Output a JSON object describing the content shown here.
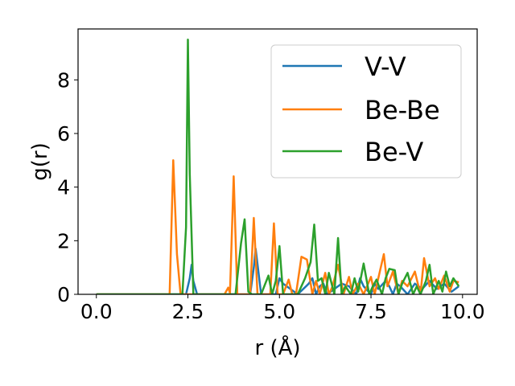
{
  "chart_data": {
    "type": "line",
    "title": "",
    "xlabel": "r (Å)",
    "ylabel": "g(r)",
    "xlim": [
      -0.5,
      10.4
    ],
    "ylim": [
      0,
      9.9
    ],
    "xticks": [
      0.0,
      2.5,
      5.0,
      7.5,
      10.0
    ],
    "xtick_labels": [
      "0.0",
      "2.5",
      "5.0",
      "7.5",
      "10.0"
    ],
    "yticks": [
      0,
      2,
      4,
      6,
      8
    ],
    "ytick_labels": [
      "0",
      "2",
      "4",
      "6",
      "8"
    ],
    "grid": false,
    "legend_position": "top-right",
    "colors": {
      "V-V": "#1f77b4",
      "Be-Be": "#ff7f0e",
      "Be-V": "#2ca02c"
    },
    "series": [
      {
        "name": "V-V",
        "color": "#1f77b4",
        "x": [
          0.0,
          2.45,
          2.55,
          2.6,
          2.65,
          2.75,
          4.2,
          4.3,
          4.35,
          4.5,
          4.9,
          5.0,
          5.1,
          5.5,
          5.8,
          5.9,
          6.0,
          6.1,
          6.2,
          6.3,
          6.6,
          6.7,
          6.9,
          7.1,
          7.2,
          7.3,
          7.5,
          7.6,
          7.7,
          7.9,
          8.0,
          8.1,
          8.2,
          8.3,
          8.5,
          8.7,
          8.9,
          9.1,
          9.3,
          9.5,
          9.7,
          9.9
        ],
        "y": [
          0.0,
          0.0,
          0.6,
          1.1,
          0.5,
          0.0,
          0.0,
          1.0,
          1.7,
          0.0,
          0.0,
          0.6,
          0.4,
          0.0,
          0.4,
          0.6,
          0.0,
          0.3,
          0.4,
          0.0,
          0.3,
          0.4,
          0.3,
          0.0,
          0.6,
          0.3,
          0.0,
          0.4,
          0.2,
          0.5,
          0.3,
          0.0,
          0.4,
          0.3,
          0.0,
          0.4,
          0.2,
          0.5,
          0.2,
          0.4,
          0.1,
          0.3
        ]
      },
      {
        "name": "Be-Be",
        "color": "#ff7f0e",
        "x": [
          0.0,
          2.0,
          2.1,
          2.2,
          2.3,
          3.5,
          3.6,
          3.65,
          3.75,
          3.85,
          4.2,
          4.3,
          4.4,
          4.75,
          4.85,
          4.95,
          5.1,
          5.25,
          5.35,
          5.45,
          5.6,
          5.75,
          5.9,
          6.0,
          6.1,
          6.25,
          6.35,
          6.45,
          6.6,
          6.75,
          6.9,
          7.0,
          7.15,
          7.3,
          7.5,
          7.6,
          7.75,
          7.85,
          7.95,
          8.1,
          8.25,
          8.35,
          8.5,
          8.7,
          8.85,
          8.95,
          9.1,
          9.25,
          9.35,
          9.5,
          9.65,
          9.75,
          9.9
        ],
        "y": [
          0.0,
          0.0,
          5.0,
          1.5,
          0.0,
          0.0,
          0.25,
          0.05,
          4.4,
          0.0,
          0.0,
          2.85,
          0.0,
          0.0,
          2.65,
          0.0,
          0.0,
          0.55,
          0.0,
          0.0,
          1.4,
          1.3,
          0.0,
          0.5,
          0.0,
          0.8,
          0.0,
          0.3,
          1.1,
          0.0,
          0.65,
          0.0,
          0.4,
          0.0,
          0.65,
          0.0,
          0.9,
          1.5,
          0.3,
          0.85,
          0.0,
          0.5,
          0.3,
          0.85,
          0.0,
          1.35,
          0.3,
          0.6,
          0.2,
          0.7,
          0.1,
          0.5,
          0.45
        ]
      },
      {
        "name": "Be-V",
        "color": "#2ca02c",
        "x": [
          0.0,
          2.35,
          2.45,
          2.5,
          2.55,
          2.65,
          3.8,
          3.95,
          4.05,
          4.15,
          4.25,
          4.5,
          4.7,
          4.8,
          4.9,
          5.0,
          5.1,
          5.5,
          5.7,
          5.85,
          5.95,
          6.05,
          6.15,
          6.25,
          6.35,
          6.5,
          6.6,
          6.7,
          6.8,
          6.95,
          7.05,
          7.15,
          7.3,
          7.45,
          7.55,
          7.65,
          7.8,
          7.9,
          8.0,
          8.15,
          8.25,
          8.35,
          8.5,
          8.65,
          8.75,
          8.85,
          9.0,
          9.1,
          9.2,
          9.35,
          9.45,
          9.55,
          9.65,
          9.75,
          9.9
        ],
        "y": [
          0.0,
          0.0,
          2.5,
          9.5,
          4.5,
          0.0,
          0.0,
          1.9,
          2.8,
          0.1,
          0.0,
          0.0,
          0.7,
          0.0,
          0.5,
          1.8,
          0.0,
          0.0,
          0.6,
          1.2,
          2.6,
          0.5,
          0.6,
          0.0,
          0.8,
          0.0,
          2.1,
          0.0,
          0.3,
          0.0,
          0.6,
          0.1,
          1.15,
          0.0,
          0.3,
          0.55,
          0.0,
          0.6,
          0.95,
          0.9,
          0.0,
          0.4,
          0.8,
          0.0,
          0.3,
          0.0,
          0.5,
          1.1,
          0.0,
          0.5,
          0.1,
          0.85,
          0.3,
          0.6,
          0.3
        ]
      }
    ]
  }
}
